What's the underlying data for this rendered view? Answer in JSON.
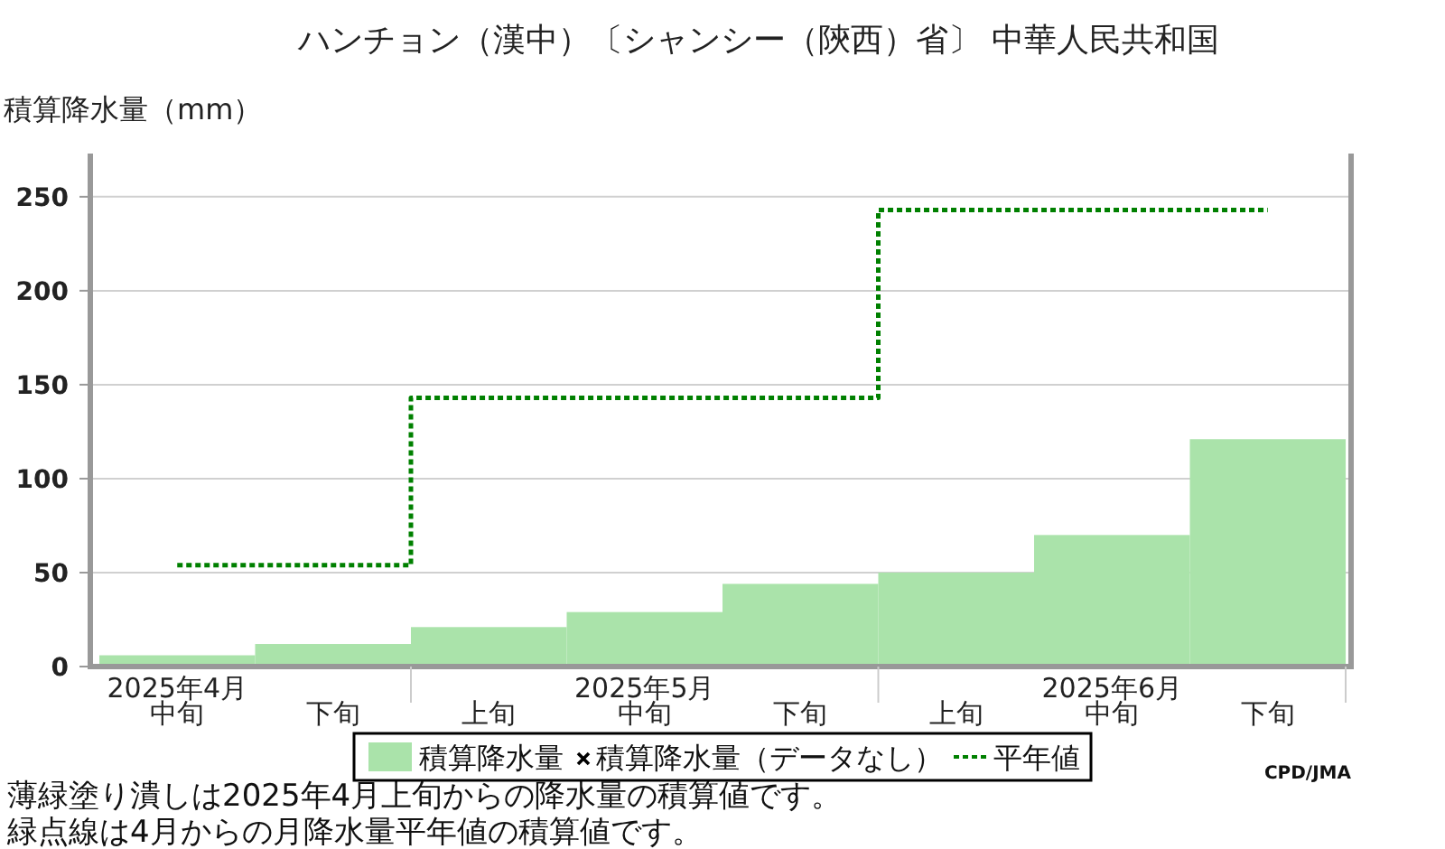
{
  "chart_data": {
    "type": "bar",
    "title": "ハンチョン（漢中）〔シャンシー（陝西）省〕 中華人民共和国",
    "ylabel": "積算降水量（mm）",
    "categories": [
      "中旬",
      "下旬",
      "上旬",
      "中旬",
      "下旬",
      "上旬",
      "中旬",
      "下旬"
    ],
    "series": [
      {
        "name": "積算降水量",
        "color": "#aae3aa",
        "values": [
          6,
          12,
          21,
          29,
          44,
          50,
          70,
          121
        ]
      },
      {
        "name": "積算降水量（データなし）",
        "type": "scatter",
        "marker": "cross",
        "color": "#000000",
        "values": [
          null,
          null,
          null,
          null,
          null,
          null,
          null,
          null
        ]
      },
      {
        "name": "平年値",
        "type": "step",
        "color": "#008000",
        "line_style": "dotted",
        "values": [
          54,
          54,
          143,
          143,
          143,
          243,
          243,
          243
        ]
      }
    ],
    "ylim": [
      0,
      273
    ],
    "yticks": [
      0,
      50,
      100,
      150,
      200,
      250
    ],
    "grid": "y",
    "legend": "bottom",
    "annotations": [
      "2025年4月",
      "2025年5月",
      "2025年6月",
      "薄緑塗り潰しは2025年4月上旬からの降水量の積算値です。",
      "緑点線は4月からの月降水量平年値の積算値です。",
      "CPD/JMA"
    ]
  }
}
